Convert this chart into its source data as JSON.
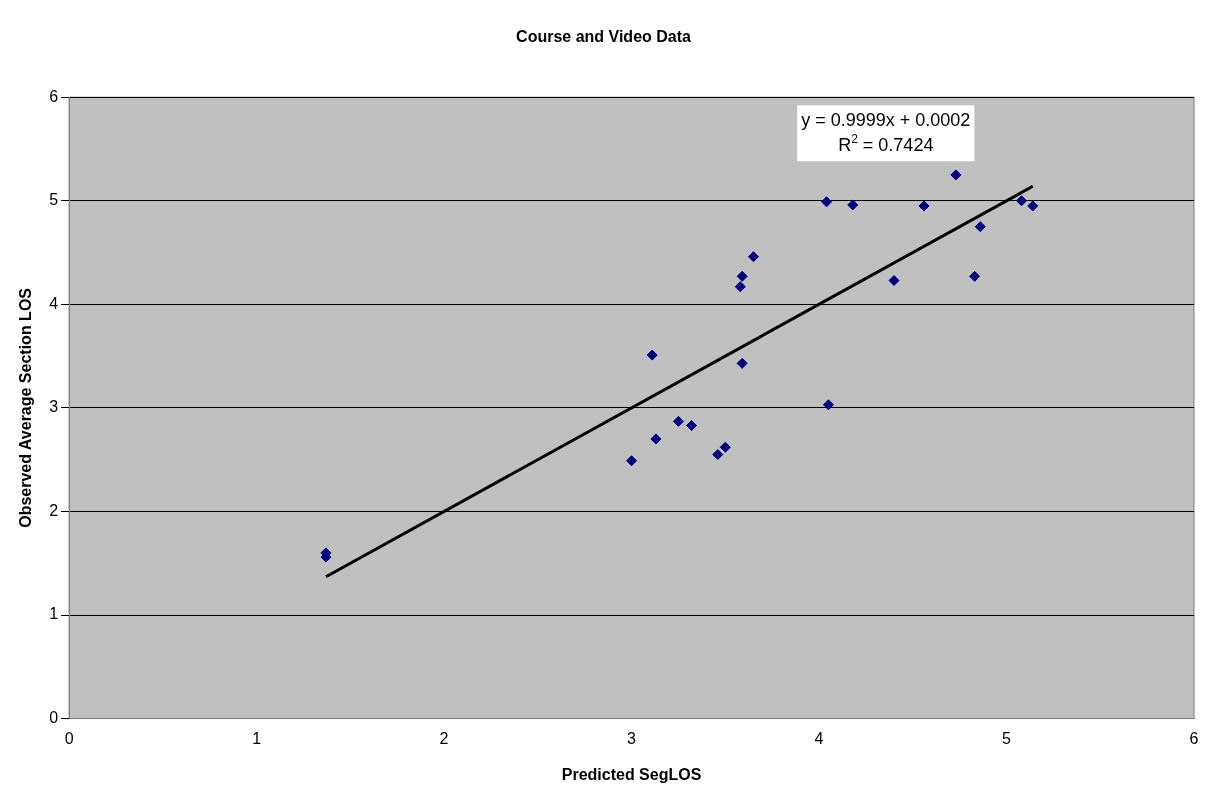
{
  "chart_data": {
    "type": "scatter",
    "title": "Course and Video Data",
    "xlabel": "Predicted SegLOS",
    "ylabel": "Observed Average Section LOS",
    "xlim": [
      0,
      6
    ],
    "xticks": [
      0,
      1,
      2,
      3,
      4,
      5,
      6
    ],
    "ylim": [
      0,
      6
    ],
    "yticks": [
      0,
      1,
      2,
      3,
      4,
      5,
      6
    ],
    "grid": "y",
    "legend": false,
    "marker": "diamond",
    "series": [
      {
        "color": "#000080",
        "x": [
          1.37,
          1.37,
          3.0,
          3.11,
          3.13,
          3.25,
          3.32,
          3.46,
          3.5,
          3.58,
          3.59,
          3.59,
          3.65,
          4.04,
          4.05,
          4.18,
          4.4,
          4.56,
          4.73,
          4.83,
          4.86,
          5.08,
          5.14
        ],
        "values": [
          1.6,
          1.56,
          2.49,
          3.51,
          2.7,
          2.87,
          2.83,
          2.55,
          2.62,
          4.17,
          4.27,
          3.43,
          4.46,
          4.99,
          3.03,
          4.96,
          4.23,
          4.95,
          5.25,
          4.27,
          4.75,
          5.0,
          4.95
        ]
      },
      {
        "type": "line",
        "marker": "none",
        "color": "#000000",
        "x": [
          1.37,
          5.14
        ],
        "values": [
          1.37,
          5.14
        ]
      }
    ],
    "annotations": [
      "y = 0.9999x + 0.0002",
      "R$^{2}$ = 0.7424"
    ]
  }
}
